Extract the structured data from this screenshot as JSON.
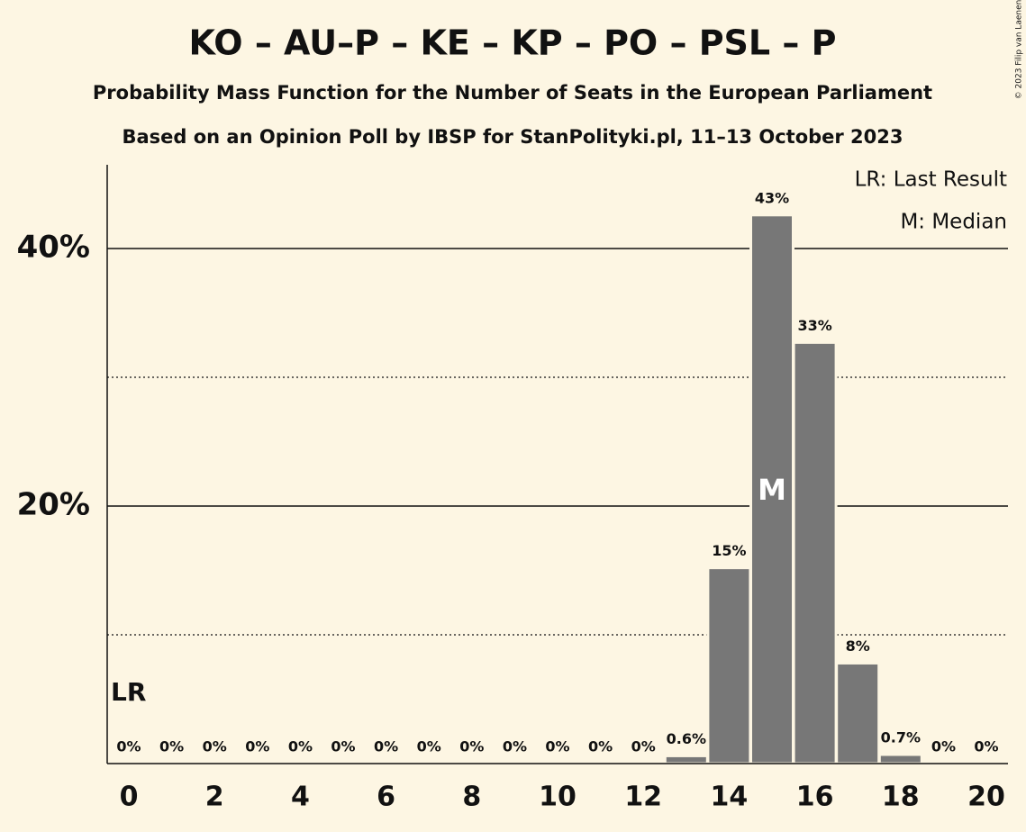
{
  "chart_data": {
    "type": "bar",
    "title": "KO – AU–P – KE – KP – PO – PSL – P",
    "subtitle": "Probability Mass Function for the Number of Seats in the European Parliament",
    "subtitle2": "Based on an Opinion Poll by IBSP for StanPolityki.pl, 11–13 October 2023",
    "copyright": "© 2023 Filip van Laenen",
    "categories": [
      "0",
      null,
      "2",
      null,
      "4",
      null,
      "6",
      null,
      "8",
      null,
      "10",
      null,
      "12",
      null,
      "14",
      null,
      "16",
      null,
      "18",
      null,
      "20"
    ],
    "values": [
      0,
      0,
      0,
      0,
      0,
      0,
      0,
      0,
      0,
      0,
      0,
      0,
      0,
      0.6,
      15.2,
      42.6,
      32.7,
      7.8,
      0.7,
      0,
      0
    ],
    "value_labels": [
      "0%",
      "0%",
      "0%",
      "0%",
      "0%",
      "0%",
      "0%",
      "0%",
      "0%",
      "0%",
      "0%",
      "0%",
      "0%",
      "0.6%",
      "15%",
      "43%",
      "33%",
      "8%",
      "0.7%",
      "0%",
      "0%"
    ],
    "color": "#777777",
    "ylim": [
      0,
      46.5
    ],
    "yticks": [
      {
        "value": 20,
        "label": "20%"
      },
      {
        "value": 40,
        "label": "40%"
      }
    ],
    "minor_gridlines": [
      10,
      30
    ],
    "grid": true,
    "annotations": [
      {
        "text": "LR",
        "category": 0
      },
      {
        "text": "M",
        "category": 15
      }
    ],
    "legend": [
      "LR: Last Result",
      "M: Median"
    ],
    "legend_position": "top-right"
  }
}
